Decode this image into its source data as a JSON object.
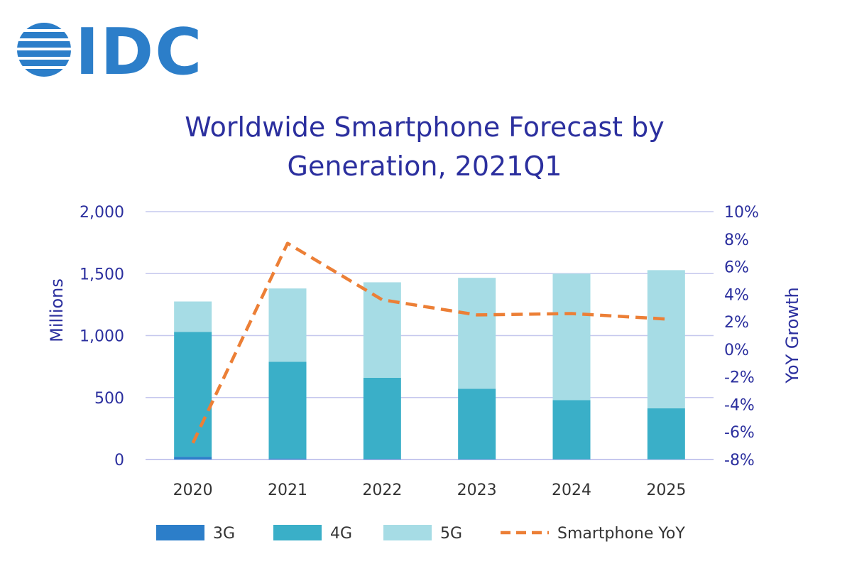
{
  "brand": {
    "logo_text": "IDC",
    "logo_color": "#2c7ec9"
  },
  "chart_data": {
    "type": "bar",
    "stacked": true,
    "title": "Worldwide Smartphone Forecast by Generation, 2021Q1",
    "title_lines": [
      "Worldwide Smartphone Forecast by",
      "Generation, 2021Q1"
    ],
    "ylabel": "Millions",
    "y2label": "YoY Growth",
    "categories": [
      "2020",
      "2021",
      "2022",
      "2023",
      "2024",
      "2025"
    ],
    "series": [
      {
        "name": "3G",
        "kind": "bar",
        "color": "#2c7ec9",
        "values": [
          22,
          8,
          5,
          3,
          2,
          1
        ]
      },
      {
        "name": "4G",
        "kind": "bar",
        "color": "#3aafc8",
        "values": [
          1008,
          780,
          655,
          568,
          478,
          412
        ]
      },
      {
        "name": "5G",
        "kind": "bar",
        "color": "#a6dce5",
        "values": [
          245,
          592,
          770,
          895,
          1020,
          1115
        ]
      },
      {
        "name": "Smartphone YoY",
        "kind": "line",
        "axis": "right",
        "color": "#ec7f36",
        "dashed": true,
        "values": [
          -6.8,
          7.7,
          3.6,
          2.5,
          2.6,
          2.2
        ]
      }
    ],
    "ylim": [
      0,
      2000
    ],
    "yticks": [
      0,
      500,
      1000,
      1500,
      2000
    ],
    "ytick_labels": [
      "0",
      "500",
      "1,000",
      "1,500",
      "2,000"
    ],
    "y2lim": [
      -8,
      10
    ],
    "y2ticks": [
      -8,
      -6,
      -4,
      -2,
      0,
      2,
      4,
      6,
      8,
      10
    ],
    "y2tick_labels": [
      "-8%",
      "-6%",
      "-4%",
      "-2%",
      "0%",
      "2%",
      "4%",
      "6%",
      "8%",
      "10%"
    ],
    "grid": true,
    "legend_position": "bottom",
    "text_color": "#2b2f9e",
    "grid_color": "#c6c8ee"
  }
}
